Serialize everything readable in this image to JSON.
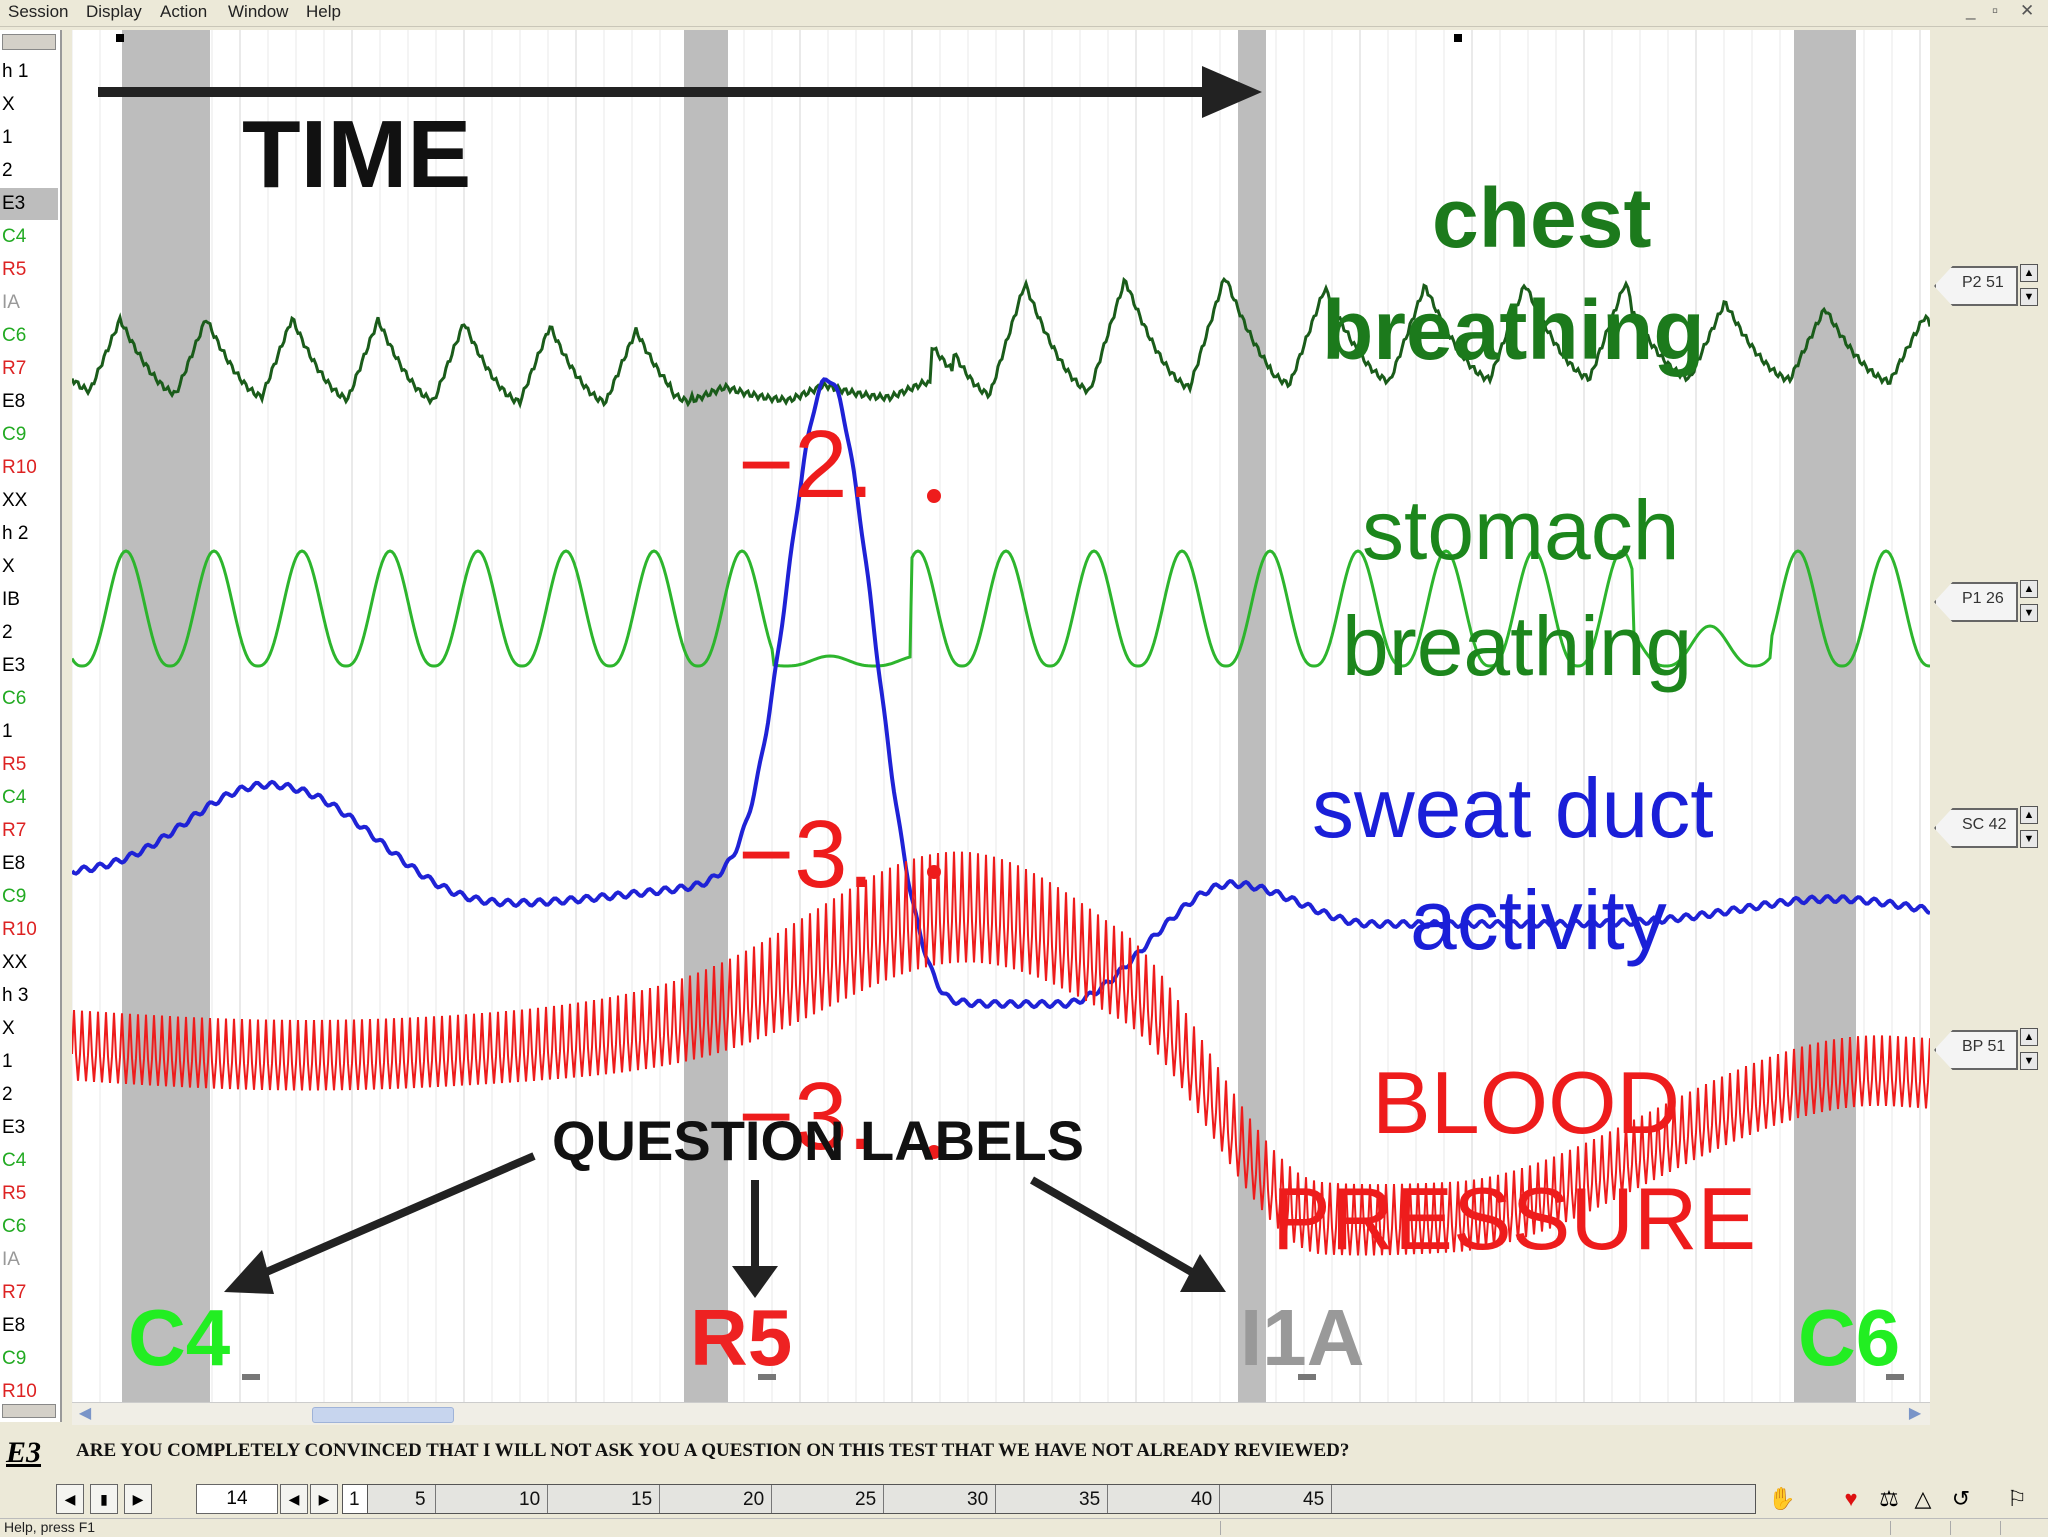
{
  "menu": [
    "Session",
    "Display",
    "Action",
    "Window",
    "Help"
  ],
  "window_controls": [
    "_",
    "▫",
    "✕"
  ],
  "question_list": [
    {
      "label": "h 1",
      "color": "#000000"
    },
    {
      "label": "X",
      "color": "#000000"
    },
    {
      "label": "1",
      "color": "#000000"
    },
    {
      "label": "2",
      "color": "#000000"
    },
    {
      "label": "E3",
      "color": "#000000",
      "selected": true
    },
    {
      "label": "C4",
      "color": "#22aa22"
    },
    {
      "label": "R5",
      "color": "#dd2222"
    },
    {
      "label": "IA",
      "color": "#999999"
    },
    {
      "label": "C6",
      "color": "#22aa22"
    },
    {
      "label": "R7",
      "color": "#dd2222"
    },
    {
      "label": "E8",
      "color": "#000000"
    },
    {
      "label": "C9",
      "color": "#22aa22"
    },
    {
      "label": "R10",
      "color": "#dd2222"
    },
    {
      "label": "XX",
      "color": "#000000"
    },
    {
      "label": "h 2",
      "color": "#000000"
    },
    {
      "label": "X",
      "color": "#000000"
    },
    {
      "label": "IB",
      "color": "#000000"
    },
    {
      "label": "2",
      "color": "#000000"
    },
    {
      "label": "E3",
      "color": "#000000"
    },
    {
      "label": "C6",
      "color": "#22aa22"
    },
    {
      "label": "1",
      "color": "#000000"
    },
    {
      "label": "R5",
      "color": "#dd2222"
    },
    {
      "label": "C4",
      "color": "#22aa22"
    },
    {
      "label": "R7",
      "color": "#dd2222"
    },
    {
      "label": "E8",
      "color": "#000000"
    },
    {
      "label": "C9",
      "color": "#22aa22"
    },
    {
      "label": "R10",
      "color": "#dd2222"
    },
    {
      "label": "XX",
      "color": "#000000"
    },
    {
      "label": "h 3",
      "color": "#000000"
    },
    {
      "label": "X",
      "color": "#000000"
    },
    {
      "label": "1",
      "color": "#000000"
    },
    {
      "label": "2",
      "color": "#000000"
    },
    {
      "label": "E3",
      "color": "#000000"
    },
    {
      "label": "C4",
      "color": "#22aa22"
    },
    {
      "label": "R5",
      "color": "#dd2222"
    },
    {
      "label": "C6",
      "color": "#22aa22"
    },
    {
      "label": "IA",
      "color": "#999999"
    },
    {
      "label": "R7",
      "color": "#dd2222"
    },
    {
      "label": "E8",
      "color": "#000000"
    },
    {
      "label": "C9",
      "color": "#22aa22"
    },
    {
      "label": "R10",
      "color": "#dd2222"
    }
  ],
  "annotations": {
    "time": "TIME",
    "chest_1": "chest",
    "chest_2": "breathing",
    "stomach_1": "stomach",
    "stomach_2": "breathing",
    "sweat_1": "sweat duct",
    "sweat_2": "activity",
    "bp_1": "BLOOD",
    "bp_2": "PRESSURE",
    "question_labels": "QUESTION LABELS",
    "score_chest": "−2.",
    "score_sweat": "−3.",
    "score_bp": "−3."
  },
  "question_markers": [
    {
      "label": "C4",
      "color": "#22ee22"
    },
    {
      "label": "R5",
      "color": "#ee2222"
    },
    {
      "label": "I1A",
      "color": "#999999"
    },
    {
      "label": "C6",
      "color": "#22ee22"
    }
  ],
  "channels": [
    {
      "label": "P2 51"
    },
    {
      "label": "P1 26"
    },
    {
      "label": "SC 42"
    },
    {
      "label": "BP 51"
    }
  ],
  "colors": {
    "chest": "#1a5c1a",
    "stomach": "#2db52d",
    "sweat": "#1f22d6",
    "bp": "#ee1c1c",
    "question_band": "#bdbdbd"
  },
  "question_bar": {
    "code": "E3",
    "text": "ARE YOU COMPLETELY CONVINCED THAT I WILL NOT ASK YOU A QUESTION ON THIS TEST THAT WE HAVE NOT ALREADY REVIEWED?"
  },
  "navigation": {
    "page": "14",
    "ruler_start": "1",
    "ruler_ticks": [
      "5",
      "10",
      "15",
      "20",
      "25",
      "30",
      "35",
      "40",
      "45"
    ]
  },
  "status": {
    "text": "Help, press F1"
  }
}
